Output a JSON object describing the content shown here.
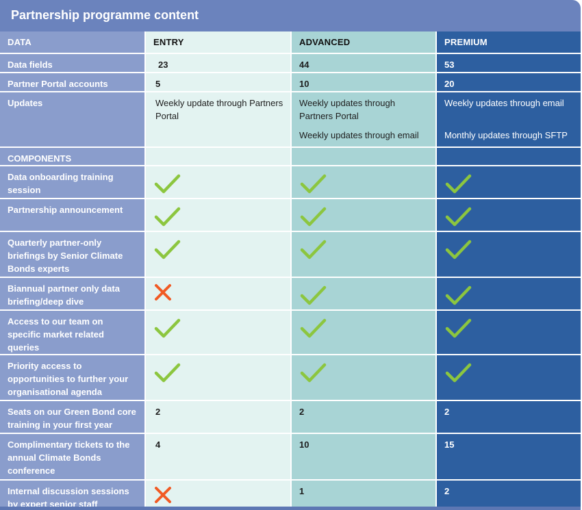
{
  "title": "Partnership programme content",
  "header": {
    "data": "DATA",
    "entry": "ENTRY",
    "advanced": "ADVANCED",
    "premium": "PREMIUM"
  },
  "rows": {
    "data_fields": {
      "label": "Data fields",
      "entry": "23",
      "advanced": "44",
      "premium": "53"
    },
    "portal_accounts": {
      "label": "Partner Portal accounts",
      "entry": "5",
      "advanced": "10",
      "premium": "20"
    },
    "updates": {
      "label": "Updates",
      "entry": [
        "Weekly update through Partners Portal"
      ],
      "advanced": [
        "Weekly updates through Partners Portal",
        "Weekly updates through email"
      ],
      "premium": [
        "Weekly updates through email",
        "Monthly updates through SFTP"
      ]
    },
    "components": {
      "label": "COMPONENTS"
    },
    "onboarding": {
      "label": "Data onboarding training session",
      "entry": "check",
      "advanced": "check",
      "premium": "check"
    },
    "announcement": {
      "label": "Partnership announcement",
      "entry": "check",
      "advanced": "check",
      "premium": "check"
    },
    "quarterly": {
      "label": "Quarterly partner-only briefings by Senior Climate Bonds experts",
      "entry": "check",
      "advanced": "check",
      "premium": "check"
    },
    "biannual": {
      "label": "Biannual partner only data briefing/deep dive",
      "entry": "cross",
      "advanced": "check",
      "premium": "check"
    },
    "access": {
      "label": "Access to our team on specific market related queries",
      "entry": "check",
      "advanced": "check",
      "premium": "check"
    },
    "priority": {
      "label": "Priority access to opportunities to further your organisational agenda",
      "entry": "check",
      "advanced": "check",
      "premium": "check"
    },
    "seats": {
      "label": "Seats on our Green Bond core training in your first year",
      "entry": "2",
      "advanced": "2",
      "premium": "2"
    },
    "tickets": {
      "label": "Complimentary tickets to the annual Climate Bonds conference",
      "entry": "4",
      "advanced": "10",
      "premium": "15"
    },
    "discussion": {
      "label": "Internal discussion sessions by expert senior staff",
      "entry": "cross",
      "advanced": "1",
      "premium": "2"
    }
  },
  "icons": {
    "check": "check-icon",
    "cross": "cross-icon"
  },
  "colors": {
    "check": "#8cc63f",
    "cross": "#f15a24",
    "label_col": "#8a9dcc",
    "entry_col": "#e3f3f1",
    "advanced_col": "#a8d4d5",
    "premium_col": "#2d5fa0",
    "title_bar": "#6b83bd"
  }
}
